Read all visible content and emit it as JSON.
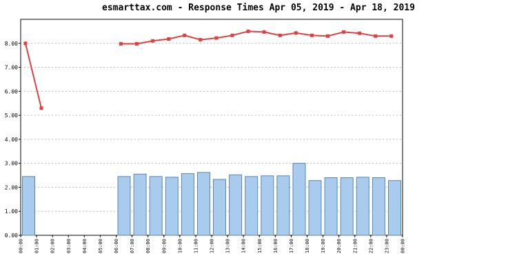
{
  "chart_data": {
    "type": "bar",
    "title": "esmarttax.com - Response Times Apr 05, 2019 - Apr 18, 2019",
    "xlabel": "",
    "ylabel": "",
    "ylim": [
      0,
      9
    ],
    "grid": true,
    "x_tick_labels": [
      "00:00",
      "01:00",
      "02:00",
      "03:00",
      "04:00",
      "05:00",
      "06:00",
      "07:00",
      "08:00",
      "09:00",
      "10:00",
      "11:00",
      "12:00",
      "13:00",
      "14:00",
      "15:00",
      "16:00",
      "17:00",
      "18:00",
      "19:00",
      "20:00",
      "21:00",
      "22:00",
      "23:00",
      "00:00"
    ],
    "y_tick_labels": [
      "0.00",
      "1.00",
      "2.00",
      "3.00",
      "4.00",
      "5.00",
      "6.00",
      "7.00",
      "8.00"
    ],
    "categories": [
      "00:00",
      "01:00",
      "02:00",
      "03:00",
      "04:00",
      "05:00",
      "06:00",
      "07:00",
      "08:00",
      "09:00",
      "10:00",
      "11:00",
      "12:00",
      "13:00",
      "14:00",
      "15:00",
      "16:00",
      "17:00",
      "18:00",
      "19:00",
      "20:00",
      "21:00",
      "22:00",
      "23:00"
    ],
    "series": [
      {
        "type": "bar",
        "color": "#a8cbee",
        "values": [
          2.45,
          null,
          null,
          null,
          null,
          null,
          2.45,
          2.55,
          2.45,
          2.42,
          2.57,
          2.62,
          2.33,
          2.52,
          2.45,
          2.48,
          2.48,
          3.0,
          2.28,
          2.4,
          2.4,
          2.42,
          2.4,
          2.28
        ]
      },
      {
        "type": "line",
        "color": "#e04040",
        "points": [
          {
            "x": 0.3,
            "y": 8.0
          },
          {
            "x": 1.3,
            "y": 5.3
          },
          {
            "x": 6.3,
            "y": 7.98
          },
          {
            "x": 7.3,
            "y": 7.98
          },
          {
            "x": 8.3,
            "y": 8.1
          },
          {
            "x": 9.3,
            "y": 8.18
          },
          {
            "x": 10.3,
            "y": 8.33
          },
          {
            "x": 11.3,
            "y": 8.15
          },
          {
            "x": 12.3,
            "y": 8.22
          },
          {
            "x": 13.3,
            "y": 8.33
          },
          {
            "x": 14.3,
            "y": 8.5
          },
          {
            "x": 15.3,
            "y": 8.47
          },
          {
            "x": 16.3,
            "y": 8.33
          },
          {
            "x": 17.3,
            "y": 8.43
          },
          {
            "x": 18.3,
            "y": 8.33
          },
          {
            "x": 19.3,
            "y": 8.3
          },
          {
            "x": 20.3,
            "y": 8.47
          },
          {
            "x": 21.3,
            "y": 8.42
          },
          {
            "x": 22.3,
            "y": 8.3
          },
          {
            "x": 23.3,
            "y": 8.3
          }
        ]
      }
    ]
  }
}
